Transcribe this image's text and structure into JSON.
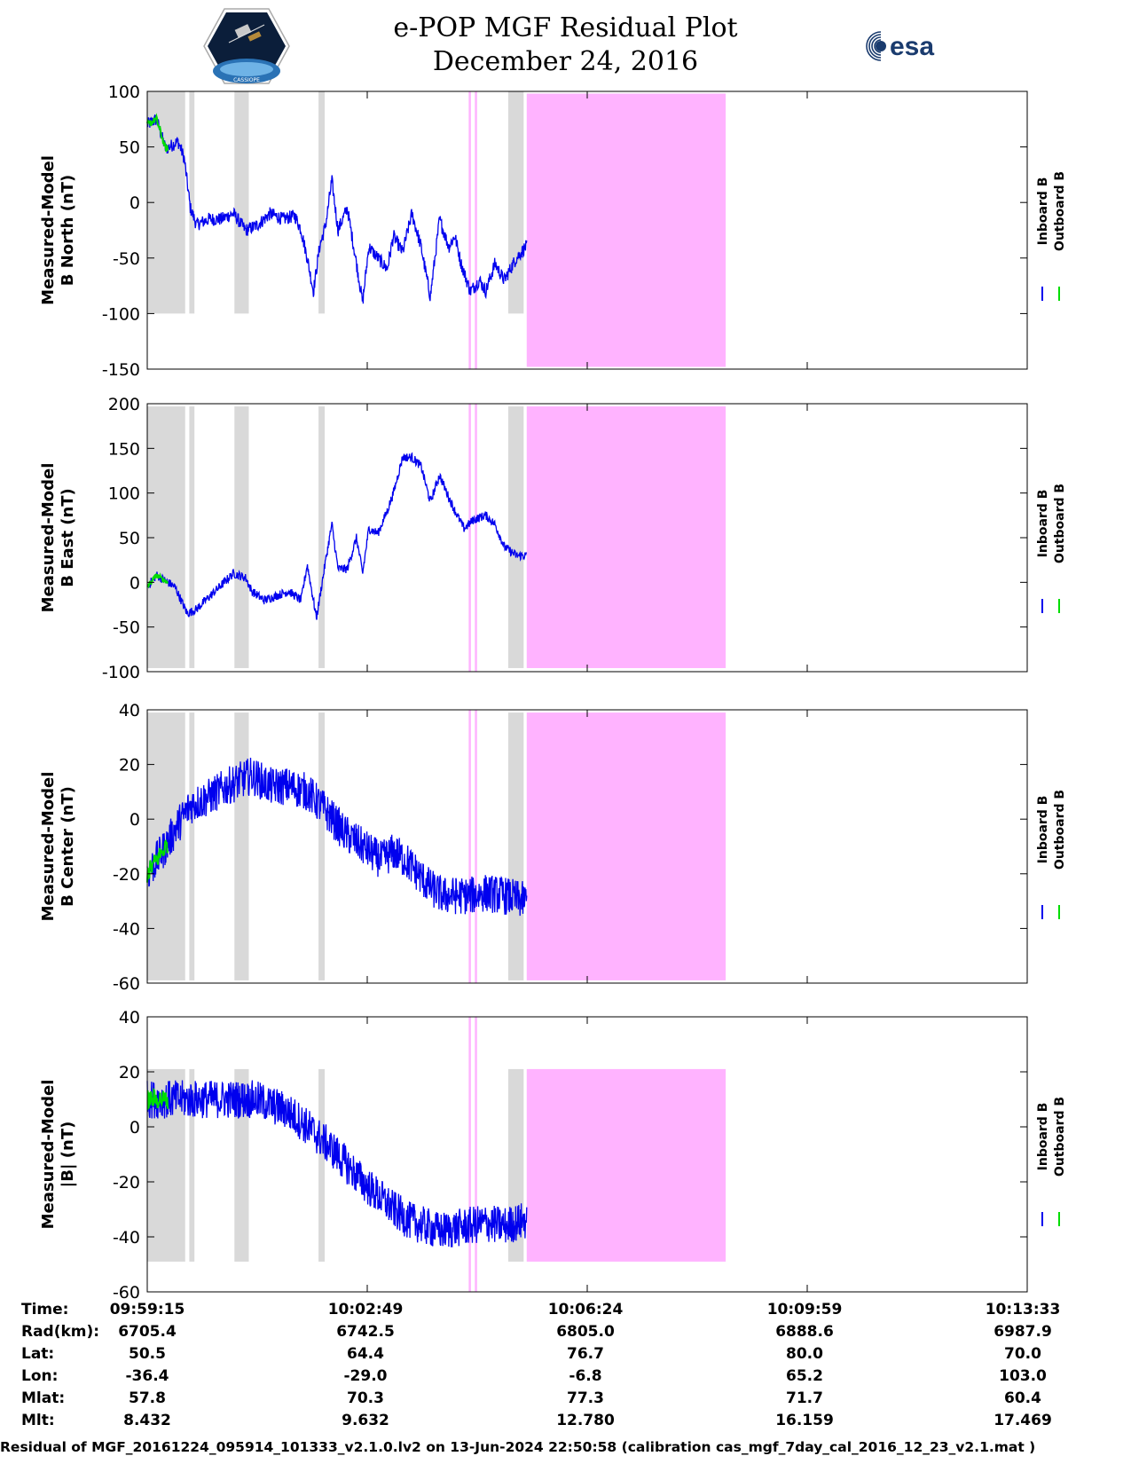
{
  "header": {
    "title": "e-POP MGF Residual Plot",
    "date": "December 24, 2016",
    "logo_left_text": "CASSIOPE",
    "logo_right_text": "esa"
  },
  "colors": {
    "inboard": "#0000ee",
    "outboard": "#00dd00",
    "gray_band": "#d9d9d9",
    "pink_band": "#ffb3ff"
  },
  "chart_data": [
    {
      "type": "line",
      "ylabel": [
        "Measured-Model",
        "B North (nT)"
      ],
      "ylim": [
        -150,
        100
      ],
      "yticks": [
        100,
        50,
        0,
        -50,
        -100,
        -150
      ],
      "band_range": [
        -100,
        100
      ],
      "pink_range": [
        -148,
        98
      ],
      "legend": [
        "Inboard B",
        "Outboard B"
      ],
      "profile": [
        [
          0,
          70
        ],
        [
          0.3,
          75
        ],
        [
          0.6,
          48
        ],
        [
          1.0,
          55
        ],
        [
          1.2,
          40
        ],
        [
          1.4,
          -5
        ],
        [
          1.6,
          -20
        ],
        [
          2.0,
          -15
        ],
        [
          2.4,
          -15
        ],
        [
          2.8,
          -10
        ],
        [
          3.2,
          -25
        ],
        [
          3.6,
          -20
        ],
        [
          4.0,
          -10
        ],
        [
          4.4,
          -15
        ],
        [
          4.8,
          -12
        ],
        [
          5.0,
          -25
        ],
        [
          5.2,
          -50
        ],
        [
          5.4,
          -80
        ],
        [
          5.6,
          -40
        ],
        [
          5.8,
          -20
        ],
        [
          6.0,
          20
        ],
        [
          6.2,
          -25
        ],
        [
          6.5,
          -5
        ],
        [
          6.8,
          -55
        ],
        [
          7.0,
          -90
        ],
        [
          7.2,
          -40
        ],
        [
          7.5,
          -50
        ],
        [
          7.8,
          -60
        ],
        [
          8.0,
          -30
        ],
        [
          8.3,
          -45
        ],
        [
          8.6,
          -10
        ],
        [
          8.9,
          -40
        ],
        [
          9.2,
          -85
        ],
        [
          9.5,
          -15
        ],
        [
          9.8,
          -40
        ],
        [
          10.0,
          -30
        ],
        [
          10.2,
          -55
        ],
        [
          10.5,
          -80
        ],
        [
          10.8,
          -70
        ],
        [
          11.0,
          -80
        ],
        [
          11.3,
          -55
        ],
        [
          11.6,
          -70
        ],
        [
          12.0,
          -50
        ],
        [
          12.3,
          -40
        ]
      ],
      "noise": 6
    },
    {
      "type": "line",
      "ylabel": [
        "Measured-Model",
        "B East (nT)"
      ],
      "ylim": [
        -100,
        200
      ],
      "yticks": [
        200,
        150,
        100,
        50,
        0,
        -50,
        -100
      ],
      "band_range": [
        -96,
        197
      ],
      "pink_range": [
        -96,
        197
      ],
      "legend": [
        "Inboard B",
        "Outboard B"
      ],
      "profile": [
        [
          0,
          -5
        ],
        [
          0.3,
          8
        ],
        [
          0.9,
          -5
        ],
        [
          1.3,
          -35
        ],
        [
          1.6,
          -30
        ],
        [
          2.2,
          -10
        ],
        [
          2.8,
          10
        ],
        [
          3.2,
          5
        ],
        [
          3.4,
          -10
        ],
        [
          3.8,
          -20
        ],
        [
          4.2,
          -15
        ],
        [
          4.6,
          -10
        ],
        [
          5.0,
          -20
        ],
        [
          5.2,
          20
        ],
        [
          5.5,
          -40
        ],
        [
          5.8,
          25
        ],
        [
          6.0,
          65
        ],
        [
          6.2,
          15
        ],
        [
          6.5,
          15
        ],
        [
          6.8,
          50
        ],
        [
          7.0,
          10
        ],
        [
          7.2,
          60
        ],
        [
          7.5,
          55
        ],
        [
          7.8,
          80
        ],
        [
          8.0,
          100
        ],
        [
          8.3,
          140
        ],
        [
          8.6,
          140
        ],
        [
          8.9,
          130
        ],
        [
          9.2,
          90
        ],
        [
          9.5,
          120
        ],
        [
          9.8,
          95
        ],
        [
          10.0,
          80
        ],
        [
          10.3,
          60
        ],
        [
          10.6,
          70
        ],
        [
          11.0,
          75
        ],
        [
          11.3,
          65
        ],
        [
          11.6,
          40
        ],
        [
          12.0,
          30
        ],
        [
          12.3,
          30
        ]
      ],
      "noise": 5
    },
    {
      "type": "line",
      "ylabel": [
        "Measured-Model",
        "B Center (nT)"
      ],
      "ylim": [
        -60,
        40
      ],
      "yticks": [
        40,
        20,
        0,
        -20,
        -40,
        -60
      ],
      "band_range": [
        -59,
        39
      ],
      "pink_range": [
        -59,
        39
      ],
      "legend": [
        "Inboard B",
        "Outboard B"
      ],
      "profile": [
        [
          0,
          -20
        ],
        [
          0.6,
          -10
        ],
        [
          1.0,
          -2
        ],
        [
          1.4,
          5
        ],
        [
          2.0,
          8
        ],
        [
          2.6,
          12
        ],
        [
          3.0,
          14
        ],
        [
          3.4,
          16
        ],
        [
          4.0,
          12
        ],
        [
          4.6,
          12
        ],
        [
          5.2,
          10
        ],
        [
          5.8,
          3
        ],
        [
          6.4,
          -5
        ],
        [
          7.0,
          -10
        ],
        [
          7.6,
          -15
        ],
        [
          8.0,
          -12
        ],
        [
          8.4,
          -15
        ],
        [
          8.8,
          -20
        ],
        [
          9.2,
          -25
        ],
        [
          9.6,
          -28
        ],
        [
          10.0,
          -28
        ],
        [
          10.5,
          -28
        ],
        [
          11.0,
          -27
        ],
        [
          11.6,
          -28
        ],
        [
          12.3,
          -30
        ]
      ],
      "noise": 7
    },
    {
      "type": "line",
      "ylabel": [
        "Measured-Model",
        "|B| (nT)"
      ],
      "ylim": [
        -60,
        40
      ],
      "yticks": [
        40,
        20,
        0,
        -20,
        -40,
        -60
      ],
      "band_range": [
        -49,
        21
      ],
      "pink_range": [
        -49,
        21
      ],
      "legend": [
        "Inboard B",
        "Outboard B"
      ],
      "profile": [
        [
          0,
          10
        ],
        [
          1.0,
          10
        ],
        [
          2.0,
          10
        ],
        [
          3.0,
          10
        ],
        [
          3.5,
          10
        ],
        [
          4.0,
          8
        ],
        [
          4.5,
          6
        ],
        [
          5.0,
          2
        ],
        [
          5.5,
          -3
        ],
        [
          6.0,
          -8
        ],
        [
          6.5,
          -14
        ],
        [
          7.0,
          -20
        ],
        [
          7.5,
          -25
        ],
        [
          8.0,
          -30
        ],
        [
          8.5,
          -34
        ],
        [
          9.0,
          -36
        ],
        [
          9.5,
          -38
        ],
        [
          10.0,
          -37
        ],
        [
          10.5,
          -36
        ],
        [
          11.0,
          -35
        ],
        [
          11.6,
          -36
        ],
        [
          12.3,
          -34
        ]
      ],
      "noise": 7
    }
  ],
  "axis": {
    "x_range_seconds": [
      0,
      858
    ],
    "data_end_seconds": 370,
    "gray_bands_seconds": [
      [
        0,
        37
      ],
      [
        41,
        46
      ],
      [
        85,
        99
      ],
      [
        167,
        173
      ],
      [
        352,
        367
      ]
    ],
    "pink_lines_seconds": [
      314.5,
      320.5
    ],
    "pink_fill_seconds": [
      370,
      564
    ]
  },
  "info_table": {
    "row_labels": [
      "Time:",
      "Rad(km):",
      "Lat:",
      "Lon:",
      "Mlat:",
      "Mlt:"
    ],
    "columns": [
      [
        "09:59:15",
        "6705.4",
        "50.5",
        "-36.4",
        "57.8",
        "8.432"
      ],
      [
        "10:02:49",
        "6742.5",
        "64.4",
        "-29.0",
        "70.3",
        "9.632"
      ],
      [
        "10:06:24",
        "6805.0",
        "76.7",
        "-6.8",
        "77.3",
        "12.780"
      ],
      [
        "10:09:59",
        "6888.6",
        "80.0",
        "65.2",
        "71.7",
        "16.159"
      ],
      [
        "10:13:33",
        "6987.9",
        "70.0",
        "103.0",
        "60.4",
        "17.469"
      ]
    ]
  },
  "footer": "Residual of MGF_20161224_095914_101333_v2.1.0.lv2 on 13-Jun-2024 22:50:58 (calibration cas_mgf_7day_cal_2016_12_23_v2.1.mat )"
}
